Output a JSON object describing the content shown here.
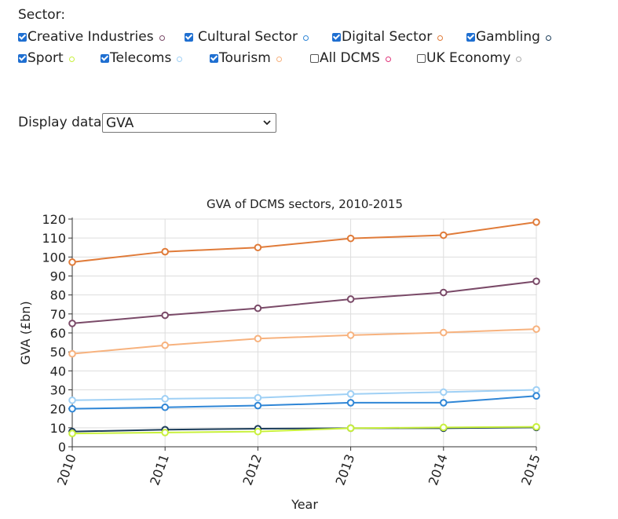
{
  "controls": {
    "sector_label": "Sector:",
    "display_label": "Display data:",
    "display_value": "GVA"
  },
  "sectors": [
    {
      "label": "Creative Industries",
      "checked": true,
      "color": "#7a4a68"
    },
    {
      "label": "Cultural Sector",
      "checked": true,
      "color": "#2f86d6"
    },
    {
      "label": "Digital Sector",
      "checked": true,
      "color": "#e07b39"
    },
    {
      "label": "Gambling",
      "checked": true,
      "color": "#1c3d5a"
    },
    {
      "label": "Sport",
      "checked": true,
      "color": "#c8f03c"
    },
    {
      "label": "Telecoms",
      "checked": true,
      "color": "#9fd0f5"
    },
    {
      "label": "Tourism",
      "checked": true,
      "color": "#f7b27e"
    },
    {
      "label": "All DCMS",
      "checked": false,
      "color": "#e0357a"
    },
    {
      "label": "UK Economy",
      "checked": false,
      "color": "#aaaaaa"
    }
  ],
  "chart_data": {
    "type": "line",
    "title": "GVA of DCMS sectors, 2010-2015",
    "xlabel": "Year",
    "ylabel": "GVA (£bn)",
    "x": [
      "2010",
      "2011",
      "2012",
      "2013",
      "2014",
      "2015"
    ],
    "ylim": [
      0,
      120
    ],
    "yticks": [
      "0",
      "10",
      "20",
      "30",
      "40",
      "50",
      "60",
      "70",
      "80",
      "90",
      "100",
      "110",
      "120"
    ],
    "grid": true,
    "series": [
      {
        "name": "Tourism",
        "color": "#f7b27e",
        "values": [
          49,
          53.5,
          57,
          58.8,
          60.2,
          62
        ]
      },
      {
        "name": "Telecoms",
        "color": "#9fd0f5",
        "values": [
          24.5,
          25.3,
          25.8,
          27.8,
          28.8,
          30
        ]
      },
      {
        "name": "Cultural Sector",
        "color": "#2f86d6",
        "values": [
          20,
          20.8,
          21.7,
          23.2,
          23.2,
          26.8
        ]
      },
      {
        "name": "Gambling",
        "color": "#1c3d5a",
        "values": [
          8,
          9,
          9.5,
          9.8,
          9.8,
          10.2
        ]
      },
      {
        "name": "Sport",
        "color": "#c8f03c",
        "values": [
          7,
          7.5,
          8,
          9.8,
          10.2,
          10.5
        ]
      },
      {
        "name": "Creative Industries",
        "color": "#7a4a68",
        "values": [
          65,
          69.3,
          73,
          77.8,
          81.3,
          87.2
        ]
      },
      {
        "name": "Digital Sector",
        "color": "#e07b39",
        "values": [
          97.3,
          102.8,
          105,
          109.8,
          111.5,
          118.4
        ]
      }
    ]
  }
}
